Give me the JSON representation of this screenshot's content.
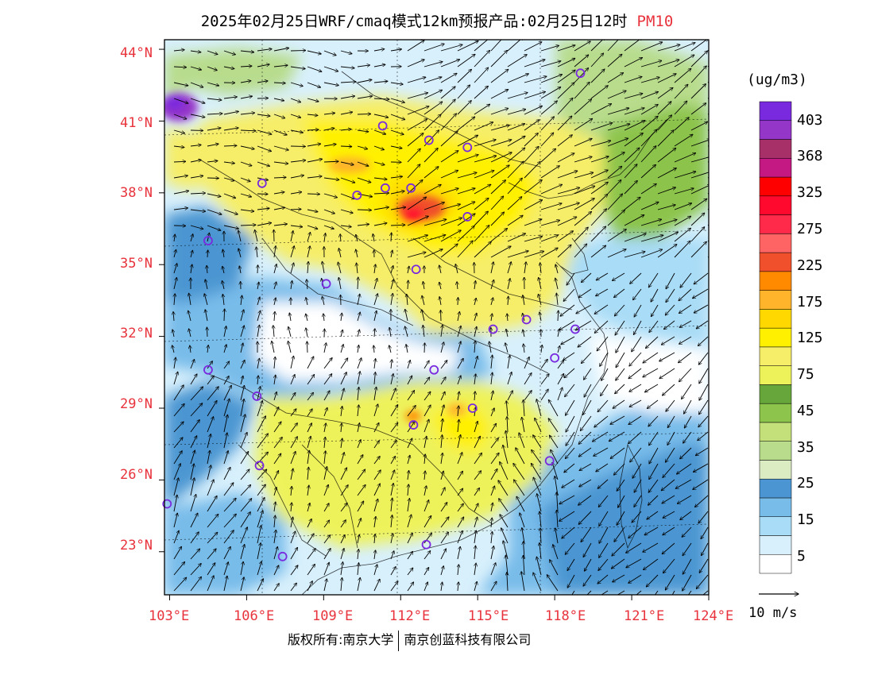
{
  "title": {
    "main": "2025年02月25日WRF/cmaq模式12km预报产品:02月25日12时",
    "variable": "PM10"
  },
  "map": {
    "lon_range": [
      102.8,
      124.0
    ],
    "lat_range": [
      21.2,
      44.4
    ],
    "lat_ticks": [
      {
        "value": 44,
        "label": "44°N"
      },
      {
        "value": 41,
        "label": "41°N"
      },
      {
        "value": 38,
        "label": "38°N"
      },
      {
        "value": 35,
        "label": "35°N"
      },
      {
        "value": 32,
        "label": "32°N"
      },
      {
        "value": 29,
        "label": "29°N"
      },
      {
        "value": 26,
        "label": "26°N"
      },
      {
        "value": 23,
        "label": "23°N"
      }
    ],
    "lon_ticks": [
      {
        "value": 103,
        "label": "103°E"
      },
      {
        "value": 106,
        "label": "106°E"
      },
      {
        "value": 109,
        "label": "109°E"
      },
      {
        "value": 112,
        "label": "112°E"
      },
      {
        "value": 115,
        "label": "115°E"
      },
      {
        "value": 118,
        "label": "118°E"
      },
      {
        "value": 121,
        "label": "121°E"
      },
      {
        "value": 124,
        "label": "124°E"
      }
    ],
    "city_markers": [
      {
        "lon": 119.0,
        "lat": 43.0
      },
      {
        "lon": 111.3,
        "lat": 40.8
      },
      {
        "lon": 113.1,
        "lat": 40.2
      },
      {
        "lon": 114.6,
        "lat": 39.9
      },
      {
        "lon": 106.6,
        "lat": 38.4
      },
      {
        "lon": 110.3,
        "lat": 37.9
      },
      {
        "lon": 111.4,
        "lat": 38.2
      },
      {
        "lon": 112.4,
        "lat": 38.2
      },
      {
        "lon": 114.6,
        "lat": 37.0
      },
      {
        "lon": 104.5,
        "lat": 36.0
      },
      {
        "lon": 112.6,
        "lat": 34.8
      },
      {
        "lon": 109.1,
        "lat": 34.2
      },
      {
        "lon": 115.6,
        "lat": 32.3
      },
      {
        "lon": 116.9,
        "lat": 32.7
      },
      {
        "lon": 118.8,
        "lat": 32.3
      },
      {
        "lon": 118.0,
        "lat": 31.1
      },
      {
        "lon": 104.5,
        "lat": 30.6
      },
      {
        "lon": 113.3,
        "lat": 30.6
      },
      {
        "lon": 106.4,
        "lat": 29.5
      },
      {
        "lon": 114.8,
        "lat": 29.0
      },
      {
        "lon": 112.5,
        "lat": 28.3
      },
      {
        "lon": 106.5,
        "lat": 26.6
      },
      {
        "lon": 117.8,
        "lat": 26.8
      },
      {
        "lon": 102.9,
        "lat": 25.0
      },
      {
        "lon": 113.0,
        "lat": 23.3
      },
      {
        "lon": 107.4,
        "lat": 22.8
      }
    ],
    "vector_reference": "10 m/s"
  },
  "colorbar": {
    "units": "(ug/m3)",
    "colors": [
      "#ffffff",
      "#d8f0fc",
      "#a9dcf6",
      "#78bcea",
      "#4b96d2",
      "#dcecc2",
      "#b8dc8c",
      "#c4e07a",
      "#8cc44c",
      "#66a63a",
      "#eef25a",
      "#f6ee68",
      "#fff000",
      "#ffd800",
      "#ffb42c",
      "#ff8a00",
      "#f0502c",
      "#ff6464",
      "#ff2a4a",
      "#ff0a2e",
      "#ff0000",
      "#c41882",
      "#a83068",
      "#9436c8",
      "#7a2ade"
    ],
    "labels": [
      "5",
      "15",
      "25",
      "35",
      "45",
      "75",
      "125",
      "175",
      "225",
      "275",
      "325",
      "368",
      "403"
    ]
  },
  "footer": {
    "copyright_left": "版权所有:南京大学",
    "copyright_right": "南京创蓝科技有限公司"
  }
}
